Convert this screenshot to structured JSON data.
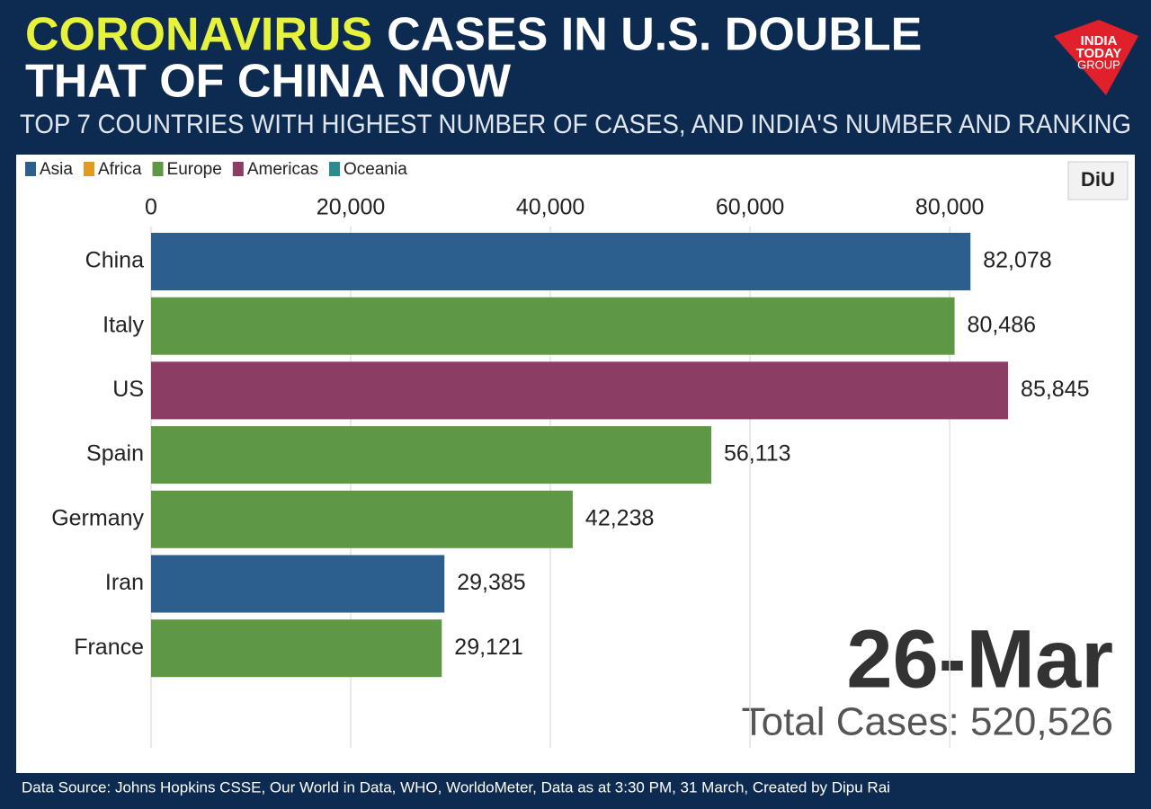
{
  "chart_data": {
    "type": "bar",
    "orientation": "horizontal",
    "title_highlight": "CORONAVIRUS",
    "title_line1": "CASES IN U.S. DOUBLE",
    "title_line2": "THAT OF CHINA NOW",
    "subtitle": "TOP 7 COUNTRIES WITH HIGHEST NUMBER OF CASES, AND INDIA'S NUMBER AND RANKING",
    "legend": [
      {
        "name": "Asia",
        "color": "#2d5f8e"
      },
      {
        "name": "Africa",
        "color": "#e39a22"
      },
      {
        "name": "Europe",
        "color": "#5f9845"
      },
      {
        "name": "Americas",
        "color": "#8c3d63"
      },
      {
        "name": "Oceania",
        "color": "#2a8c8e"
      }
    ],
    "categories": [
      "China",
      "Italy",
      "US",
      "Spain",
      "Germany",
      "Iran",
      "France"
    ],
    "values": [
      82078,
      80486,
      85845,
      56113,
      42238,
      29385,
      29121
    ],
    "value_labels": [
      "82,078",
      "80,486",
      "85,845",
      "56,113",
      "42,238",
      "29,385",
      "29,121"
    ],
    "colors": [
      "#2d5f8e",
      "#5f9845",
      "#8c3d63",
      "#5f9845",
      "#5f9845",
      "#2d5f8e",
      "#5f9845"
    ],
    "xlim": [
      0,
      98000
    ],
    "xticks": [
      0,
      {
        "value": 20000,
        "label": "20,000"
      },
      {
        "value": 40000,
        "label": "40,000"
      },
      {
        "value": 60000,
        "label": "60,000"
      },
      {
        "value": 80000,
        "label": "80,000"
      }
    ],
    "grid": true,
    "date": "26-Mar",
    "total": "Total Cases: 520,526",
    "source": "Data Source: Johns Hopkins CSSE, Our World in Data, WHO, WorldoMeter, Data as at 3:30 PM, 31 March, Created by Dipu Rai",
    "logo": [
      "INDIA",
      "TODAY",
      "GROUP"
    ],
    "badge": "DiU"
  }
}
